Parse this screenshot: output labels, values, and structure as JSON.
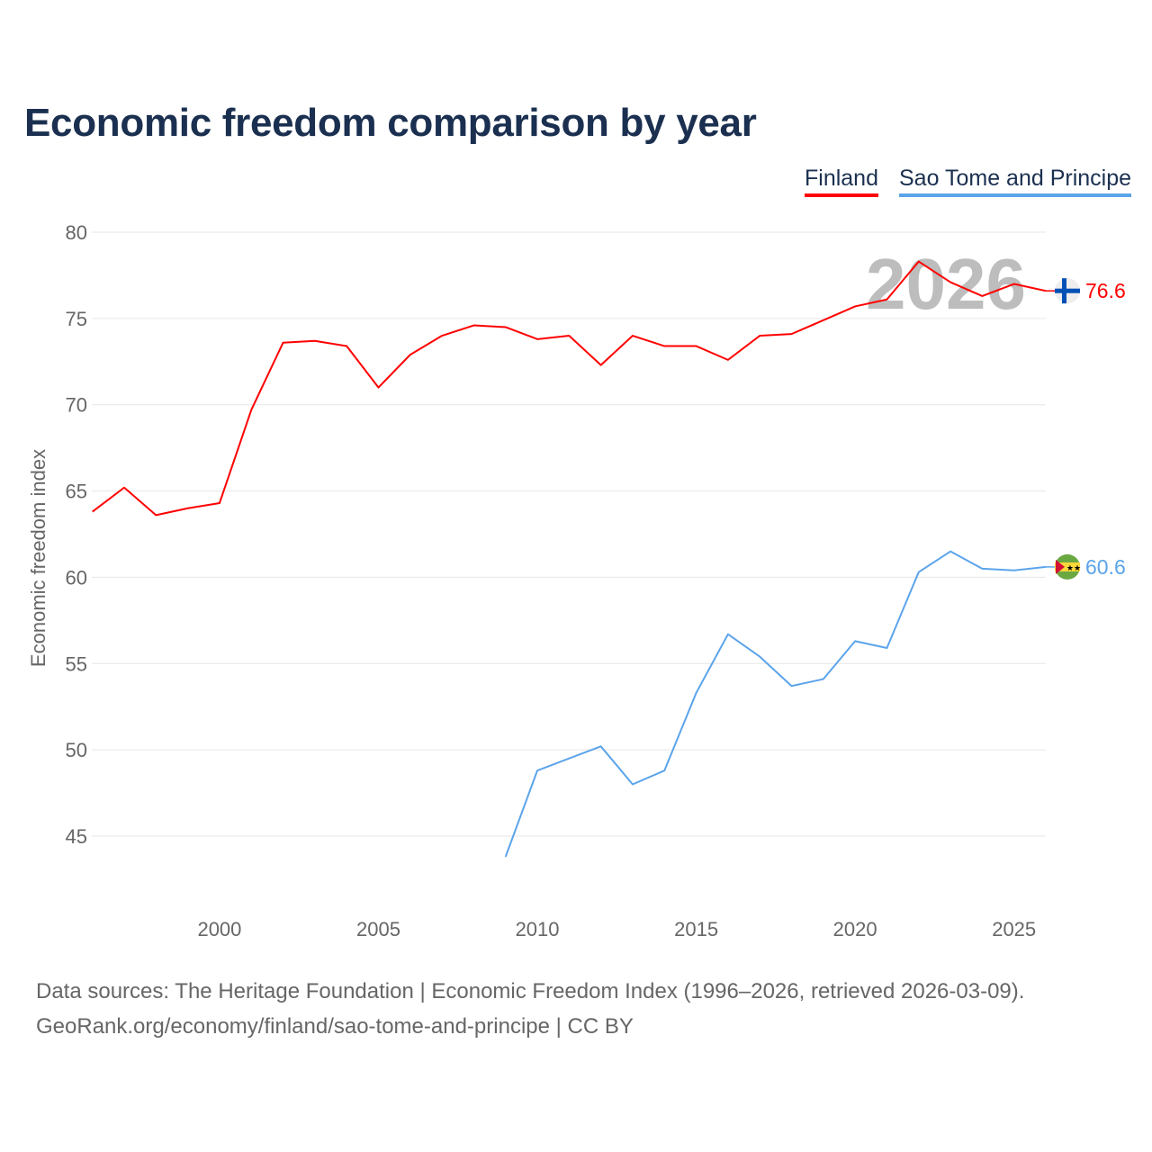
{
  "title": "Economic freedom comparison by year",
  "watermark_year": "2026",
  "footer": {
    "line1": "Data sources: The Heritage Foundation | Economic Freedom Index (1996–2026, retrieved 2026-03-09).",
    "line2": "GeoRank.org/economy/finland/sao-tome-and-principe | CC BY"
  },
  "chart_data": {
    "type": "line",
    "title": "Economic freedom comparison by year",
    "xlabel": "",
    "ylabel": "Economic freedom index",
    "xlim": [
      1996,
      2026
    ],
    "ylim": [
      40,
      80
    ],
    "yticks": [
      45,
      50,
      55,
      60,
      65,
      70,
      75,
      80
    ],
    "xticks": [
      2000,
      2005,
      2010,
      2015,
      2020,
      2025
    ],
    "grid": true,
    "legend_position": "top-right",
    "series": [
      {
        "name": "Finland",
        "color": "#ff0000",
        "flag_icon": "finland-flag-icon",
        "end_label": "76.6",
        "x": [
          1996,
          1997,
          1998,
          1999,
          2000,
          2001,
          2002,
          2003,
          2004,
          2005,
          2006,
          2007,
          2008,
          2009,
          2010,
          2011,
          2012,
          2013,
          2014,
          2015,
          2016,
          2017,
          2018,
          2019,
          2020,
          2021,
          2022,
          2023,
          2024,
          2025,
          2026
        ],
        "values": [
          63.8,
          65.2,
          63.6,
          64.0,
          64.3,
          69.7,
          73.6,
          73.7,
          73.4,
          71.0,
          72.9,
          74.0,
          74.6,
          74.5,
          73.8,
          74.0,
          72.3,
          74.0,
          73.4,
          73.4,
          72.6,
          74.0,
          74.1,
          74.9,
          75.7,
          76.1,
          78.3,
          77.1,
          76.3,
          77.0,
          76.6
        ]
      },
      {
        "name": "Sao Tome and Principe",
        "color": "#5ba4ea",
        "flag_icon": "sao-tome-flag-icon",
        "end_label": "60.6",
        "x": [
          2009,
          2010,
          2011,
          2012,
          2013,
          2014,
          2015,
          2016,
          2017,
          2018,
          2019,
          2020,
          2021,
          2022,
          2023,
          2024,
          2025,
          2026
        ],
        "values": [
          43.8,
          48.8,
          49.5,
          50.2,
          48.0,
          48.8,
          53.3,
          56.7,
          55.4,
          53.7,
          54.1,
          56.3,
          55.9,
          60.3,
          61.5,
          60.5,
          60.4,
          60.6
        ]
      }
    ]
  }
}
